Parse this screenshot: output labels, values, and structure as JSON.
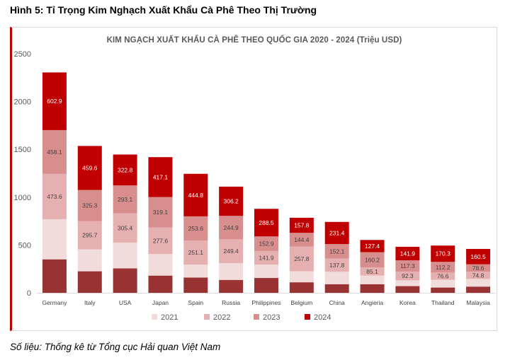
{
  "figure_title": "Hình 5: Tỉ Trọng Kim Nghạch Xuất Khẩu Cà Phê Theo Thị Trường",
  "source_note": "Số liệu: Thống kê từ Tổng cục Hải quan Việt Nam",
  "colors": {
    "frame_accent": "#c00000",
    "series": [
      "#993333",
      "#f2dcdb",
      "#e6b0b0",
      "#d98e8e",
      "#c00000"
    ]
  },
  "chart_data": {
    "type": "bar",
    "stacked": true,
    "title": "KIM NGẠCH XUẤT KHẨU CÀ PHÊ THEO QUỐC GIA 2020 - 2024 (Triệu USD)",
    "xlabel": "",
    "ylabel": "",
    "ylim": [
      0,
      2500
    ],
    "yticks": [
      0,
      500,
      1000,
      1500,
      2000,
      2500
    ],
    "grid": false,
    "legend_position": "bottom",
    "categories": [
      "Germany",
      "Italy",
      "USA",
      "Japan",
      "Spain",
      "Russia",
      "Philippines",
      "Belgium",
      "China",
      "Angieria",
      "Korea",
      "Thailand",
      "Malaysia"
    ],
    "series": [
      {
        "name": "",
        "values": [
          350,
          225,
          255,
          180,
          160,
          135,
          155,
          110,
          90,
          90,
          70,
          55,
          65
        ]
      },
      {
        "name": "2021",
        "values": [
          420,
          230,
          270,
          225,
          135,
          175,
          140,
          115,
          130,
          90,
          60,
          80,
          80
        ]
      },
      {
        "name": "2022",
        "values": [
          473.6,
          295.7,
          305.4,
          277.6,
          251.1,
          249.4,
          141.9,
          257.8,
          137.8,
          85.1,
          92.3,
          76.6,
          74.8
        ]
      },
      {
        "name": "2023",
        "values": [
          458.1,
          325.3,
          293.1,
          319.1,
          253.6,
          244.9,
          152.9,
          144.4,
          152.1,
          160.2,
          117.3,
          112.2,
          78.6
        ]
      },
      {
        "name": "2024",
        "values": [
          602.9,
          459.6,
          322.8,
          417.1,
          444.8,
          306.2,
          288.5,
          157.8,
          231.4,
          127.4,
          141.9,
          170.3,
          160.5
        ]
      }
    ],
    "data_labels": {
      "2022": [
        "473.6",
        "295.7",
        "305.4",
        "277.6",
        "251.1",
        "249.4",
        "141.9",
        "257.8",
        "137.8",
        "85.1",
        "92.3",
        "76.6",
        "74.8"
      ],
      "2023": [
        "458.1",
        "325.3",
        "293.1",
        "319.1",
        "253.6",
        "244.9",
        "152.9",
        "144.4",
        "152.1",
        "160.2",
        "117.3",
        "112.2",
        "78.6"
      ],
      "2024": [
        "602.9",
        "459.6",
        "322.8",
        "417.1",
        "444.8",
        "306.2",
        "288.5",
        "157.8",
        "231.4",
        "127.4",
        "141.9",
        "170.3",
        "160.5"
      ]
    }
  }
}
